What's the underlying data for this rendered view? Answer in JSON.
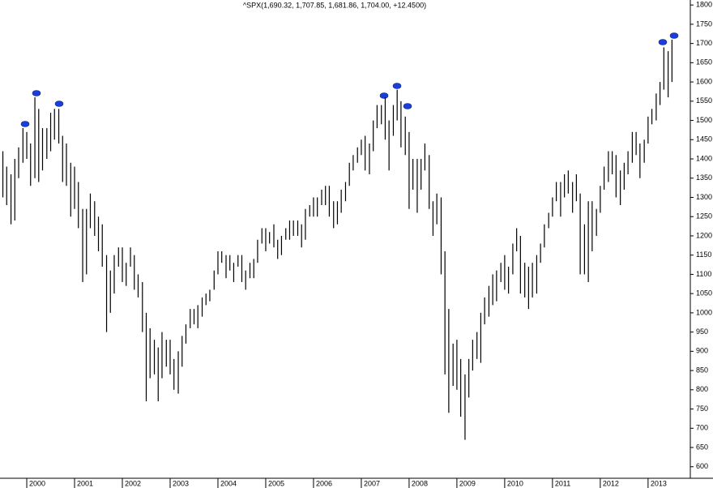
{
  "chart_data": {
    "type": "hlbar",
    "title": "^SPX(1,690.32, 1,707.85, 1,681.86, 1,704.00, +12.4500)",
    "color": "#000000",
    "xlim": [
      1999.44,
      2013.85
    ],
    "xticks": [
      2000,
      2001,
      2002,
      2003,
      2004,
      2005,
      2006,
      2007,
      2008,
      2009,
      2010,
      2011,
      2012,
      2013
    ],
    "ylim": [
      570,
      1813
    ],
    "yticks": [
      600,
      650,
      700,
      750,
      800,
      850,
      900,
      950,
      1000,
      1050,
      1100,
      1150,
      1200,
      1250,
      1300,
      1350,
      1400,
      1450,
      1500,
      1550,
      1600,
      1650,
      1700,
      1750,
      1800
    ],
    "x": [
      1999.5,
      1999.58,
      1999.67,
      1999.75,
      1999.83,
      1999.92,
      2000.0,
      2000.08,
      2000.17,
      2000.25,
      2000.33,
      2000.42,
      2000.5,
      2000.58,
      2000.67,
      2000.75,
      2000.83,
      2000.92,
      2001.0,
      2001.08,
      2001.17,
      2001.25,
      2001.33,
      2001.42,
      2001.5,
      2001.58,
      2001.67,
      2001.75,
      2001.83,
      2001.92,
      2002.0,
      2002.08,
      2002.17,
      2002.25,
      2002.33,
      2002.42,
      2002.5,
      2002.58,
      2002.67,
      2002.75,
      2002.83,
      2002.92,
      2003.0,
      2003.08,
      2003.17,
      2003.25,
      2003.33,
      2003.42,
      2003.5,
      2003.58,
      2003.67,
      2003.75,
      2003.83,
      2003.92,
      2004.0,
      2004.08,
      2004.17,
      2004.25,
      2004.33,
      2004.42,
      2004.5,
      2004.58,
      2004.67,
      2004.75,
      2004.83,
      2004.92,
      2005.0,
      2005.08,
      2005.17,
      2005.25,
      2005.33,
      2005.42,
      2005.5,
      2005.58,
      2005.67,
      2005.75,
      2005.83,
      2005.92,
      2006.0,
      2006.08,
      2006.17,
      2006.25,
      2006.33,
      2006.42,
      2006.5,
      2006.58,
      2006.67,
      2006.75,
      2006.83,
      2006.92,
      2007.0,
      2007.08,
      2007.17,
      2007.25,
      2007.33,
      2007.42,
      2007.5,
      2007.58,
      2007.67,
      2007.75,
      2007.83,
      2007.92,
      2008.0,
      2008.08,
      2008.17,
      2008.25,
      2008.33,
      2008.42,
      2008.5,
      2008.58,
      2008.67,
      2008.75,
      2008.83,
      2008.92,
      2009.0,
      2009.08,
      2009.17,
      2009.25,
      2009.33,
      2009.42,
      2009.5,
      2009.58,
      2009.67,
      2009.75,
      2009.83,
      2009.92,
      2010.0,
      2010.08,
      2010.17,
      2010.25,
      2010.33,
      2010.42,
      2010.5,
      2010.58,
      2010.67,
      2010.75,
      2010.83,
      2010.92,
      2011.0,
      2011.08,
      2011.17,
      2011.25,
      2011.33,
      2011.42,
      2011.5,
      2011.58,
      2011.67,
      2011.75,
      2011.83,
      2011.92,
      2012.0,
      2012.08,
      2012.17,
      2012.25,
      2012.33,
      2012.42,
      2012.5,
      2012.58,
      2012.67,
      2012.75,
      2012.83,
      2012.92,
      2013.0,
      2013.08,
      2013.17,
      2013.25,
      2013.33,
      2013.42,
      2013.5
    ],
    "high": [
      1420,
      1380,
      1360,
      1400,
      1430,
      1480,
      1470,
      1440,
      1560,
      1530,
      1480,
      1480,
      1520,
      1530,
      1530,
      1460,
      1440,
      1390,
      1380,
      1340,
      1270,
      1270,
      1310,
      1290,
      1250,
      1230,
      1150,
      1110,
      1150,
      1170,
      1170,
      1130,
      1170,
      1150,
      1100,
      1080,
      1000,
      960,
      930,
      910,
      950,
      930,
      930,
      880,
      900,
      940,
      970,
      1010,
      1010,
      1020,
      1040,
      1050,
      1060,
      1110,
      1160,
      1160,
      1150,
      1150,
      1130,
      1150,
      1150,
      1110,
      1130,
      1140,
      1190,
      1220,
      1220,
      1210,
      1230,
      1190,
      1200,
      1220,
      1240,
      1240,
      1240,
      1230,
      1270,
      1280,
      1300,
      1300,
      1320,
      1330,
      1330,
      1290,
      1290,
      1320,
      1340,
      1390,
      1410,
      1430,
      1450,
      1460,
      1440,
      1500,
      1540,
      1540,
      1560,
      1500,
      1540,
      1580,
      1550,
      1510,
      1470,
      1400,
      1400,
      1400,
      1440,
      1410,
      1290,
      1310,
      1300,
      1160,
      1010,
      920,
      930,
      880,
      840,
      880,
      930,
      950,
      1000,
      1040,
      1070,
      1100,
      1110,
      1130,
      1150,
      1120,
      1180,
      1220,
      1200,
      1130,
      1120,
      1130,
      1150,
      1180,
      1230,
      1260,
      1300,
      1340,
      1340,
      1360,
      1370,
      1340,
      1360,
      1310,
      1230,
      1290,
      1290,
      1270,
      1330,
      1380,
      1420,
      1420,
      1410,
      1370,
      1390,
      1420,
      1470,
      1470,
      1440,
      1450,
      1510,
      1530,
      1570,
      1600,
      1690,
      1680,
      1710
    ],
    "low": [
      1300,
      1280,
      1230,
      1240,
      1350,
      1390,
      1400,
      1330,
      1350,
      1340,
      1370,
      1400,
      1420,
      1450,
      1440,
      1340,
      1330,
      1250,
      1270,
      1220,
      1080,
      1100,
      1220,
      1200,
      1160,
      1120,
      950,
      1000,
      1050,
      1120,
      1080,
      1070,
      1120,
      1060,
      1040,
      950,
      770,
      830,
      840,
      770,
      830,
      860,
      840,
      800,
      790,
      860,
      920,
      960,
      970,
      960,
      990,
      1020,
      1030,
      1060,
      1100,
      1130,
      1090,
      1110,
      1080,
      1120,
      1080,
      1060,
      1090,
      1090,
      1130,
      1180,
      1160,
      1180,
      1170,
      1140,
      1150,
      1190,
      1190,
      1200,
      1200,
      1170,
      1190,
      1250,
      1250,
      1250,
      1280,
      1280,
      1250,
      1220,
      1230,
      1260,
      1290,
      1330,
      1370,
      1390,
      1410,
      1370,
      1360,
      1420,
      1480,
      1490,
      1450,
      1370,
      1460,
      1500,
      1430,
      1410,
      1270,
      1320,
      1260,
      1320,
      1370,
      1270,
      1200,
      1230,
      1100,
      840,
      740,
      810,
      800,
      730,
      670,
      780,
      850,
      880,
      870,
      970,
      990,
      1020,
      1030,
      1080,
      1060,
      1050,
      1100,
      1160,
      1050,
      1040,
      1010,
      1040,
      1050,
      1130,
      1170,
      1220,
      1250,
      1290,
      1250,
      1300,
      1310,
      1260,
      1290,
      1100,
      1100,
      1080,
      1160,
      1200,
      1260,
      1320,
      1340,
      1360,
      1300,
      1280,
      1320,
      1360,
      1390,
      1410,
      1350,
      1390,
      1440,
      1490,
      1500,
      1540,
      1580,
      1560,
      1600
    ]
  }
}
